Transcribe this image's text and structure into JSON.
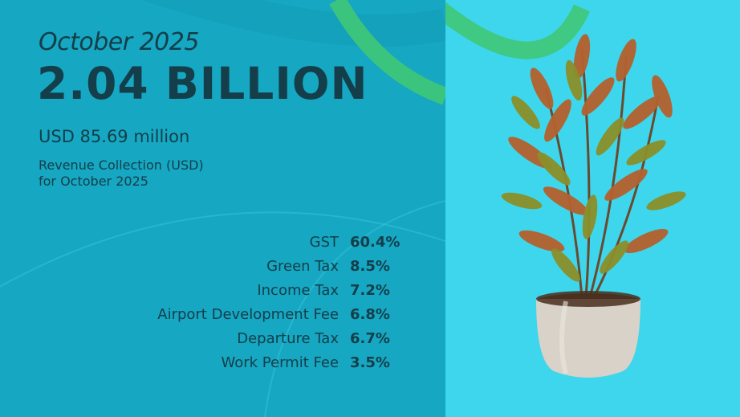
{
  "header": {
    "period": "October 2025",
    "headline": "2.04 BILLION",
    "usd_amount": "USD 85.69 million",
    "description_line1": "Revenue Collection (USD)",
    "description_line2": "for October 2025"
  },
  "breakdown": [
    {
      "label": "GST",
      "value": "60.4%"
    },
    {
      "label": "Green Tax",
      "value": "8.5%"
    },
    {
      "label": "Income Tax",
      "value": "7.2%"
    },
    {
      "label": "Airport Development Fee",
      "value": "6.8%"
    },
    {
      "label": "Departure Tax",
      "value": "6.7%"
    },
    {
      "label": "Work Permit Fee",
      "value": "3.5%"
    }
  ],
  "colors": {
    "left_background": "#16a7c2",
    "right_background": "#3ed6ec",
    "text": "#143e4a",
    "accent_arc": "#3fc877",
    "pot": "#d8d2c8"
  },
  "illustration": {
    "subject": "potted croton plant"
  }
}
